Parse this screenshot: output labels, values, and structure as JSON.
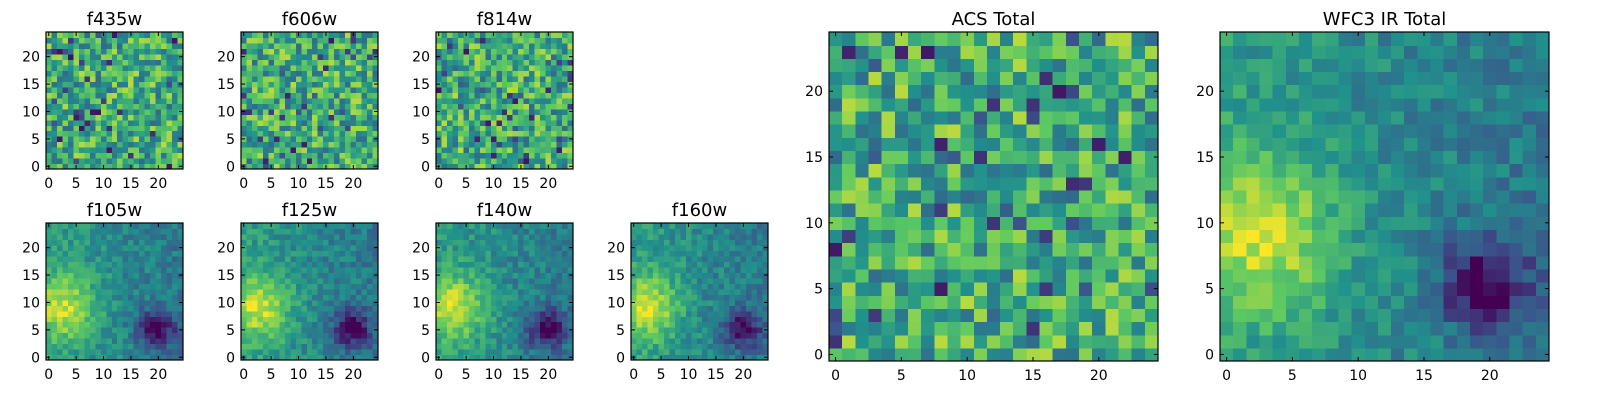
{
  "colormap": [
    "#440154",
    "#3b528b",
    "#21918c",
    "#5ec962",
    "#fde725"
  ],
  "chart_data": [
    {
      "type": "heatmap",
      "title": "f435w",
      "xticks": [
        0,
        5,
        10,
        15,
        20
      ],
      "yticks": [
        0,
        5,
        10,
        15,
        20
      ],
      "xlim": [
        0,
        24
      ],
      "ylim": [
        0,
        24
      ],
      "grid_size": 25,
      "texture": "noise",
      "seed": 11
    },
    {
      "type": "heatmap",
      "title": "f606w",
      "xticks": [
        0,
        5,
        10,
        15,
        20
      ],
      "yticks": [
        0,
        5,
        10,
        15,
        20
      ],
      "xlim": [
        0,
        24
      ],
      "ylim": [
        0,
        24
      ],
      "grid_size": 25,
      "texture": "noise",
      "seed": 23
    },
    {
      "type": "heatmap",
      "title": "f814w",
      "xticks": [
        0,
        5,
        10,
        15,
        20
      ],
      "yticks": [
        0,
        5,
        10,
        15,
        20
      ],
      "xlim": [
        0,
        24
      ],
      "ylim": [
        0,
        24
      ],
      "grid_size": 25,
      "texture": "noise",
      "seed": 37
    },
    {
      "type": "heatmap",
      "title": "f105w",
      "xticks": [
        0,
        5,
        10,
        15,
        20
      ],
      "yticks": [
        0,
        5,
        10,
        15,
        20
      ],
      "xlim": [
        0,
        24
      ],
      "ylim": [
        0,
        24
      ],
      "grid_size": 25,
      "texture": "smooth",
      "seed": 41
    },
    {
      "type": "heatmap",
      "title": "f125w",
      "xticks": [
        0,
        5,
        10,
        15,
        20
      ],
      "yticks": [
        0,
        5,
        10,
        15,
        20
      ],
      "xlim": [
        0,
        24
      ],
      "ylim": [
        0,
        24
      ],
      "grid_size": 25,
      "texture": "smooth",
      "seed": 53
    },
    {
      "type": "heatmap",
      "title": "f140w",
      "xticks": [
        0,
        5,
        10,
        15,
        20
      ],
      "yticks": [
        0,
        5,
        10,
        15,
        20
      ],
      "xlim": [
        0,
        24
      ],
      "ylim": [
        0,
        24
      ],
      "grid_size": 25,
      "texture": "smooth",
      "seed": 67
    },
    {
      "type": "heatmap",
      "title": "f160w",
      "xticks": [
        0,
        5,
        10,
        15,
        20
      ],
      "yticks": [
        0,
        5,
        10,
        15,
        20
      ],
      "xlim": [
        0,
        24
      ],
      "ylim": [
        0,
        24
      ],
      "grid_size": 25,
      "texture": "smooth",
      "seed": 79
    },
    {
      "type": "heatmap",
      "title": "ACS Total",
      "xticks": [
        0,
        5,
        10,
        15,
        20
      ],
      "yticks": [
        0,
        5,
        10,
        15,
        20
      ],
      "xlim": [
        0,
        24
      ],
      "ylim": [
        0,
        24
      ],
      "grid_size": 25,
      "texture": "noise",
      "seed": 83
    },
    {
      "type": "heatmap",
      "title": "WFC3 IR Total",
      "xticks": [
        0,
        5,
        10,
        15,
        20
      ],
      "yticks": [
        0,
        5,
        10,
        15,
        20
      ],
      "xlim": [
        0,
        24
      ],
      "ylim": [
        0,
        24
      ],
      "grid_size": 25,
      "texture": "smooth",
      "seed": 97
    }
  ]
}
